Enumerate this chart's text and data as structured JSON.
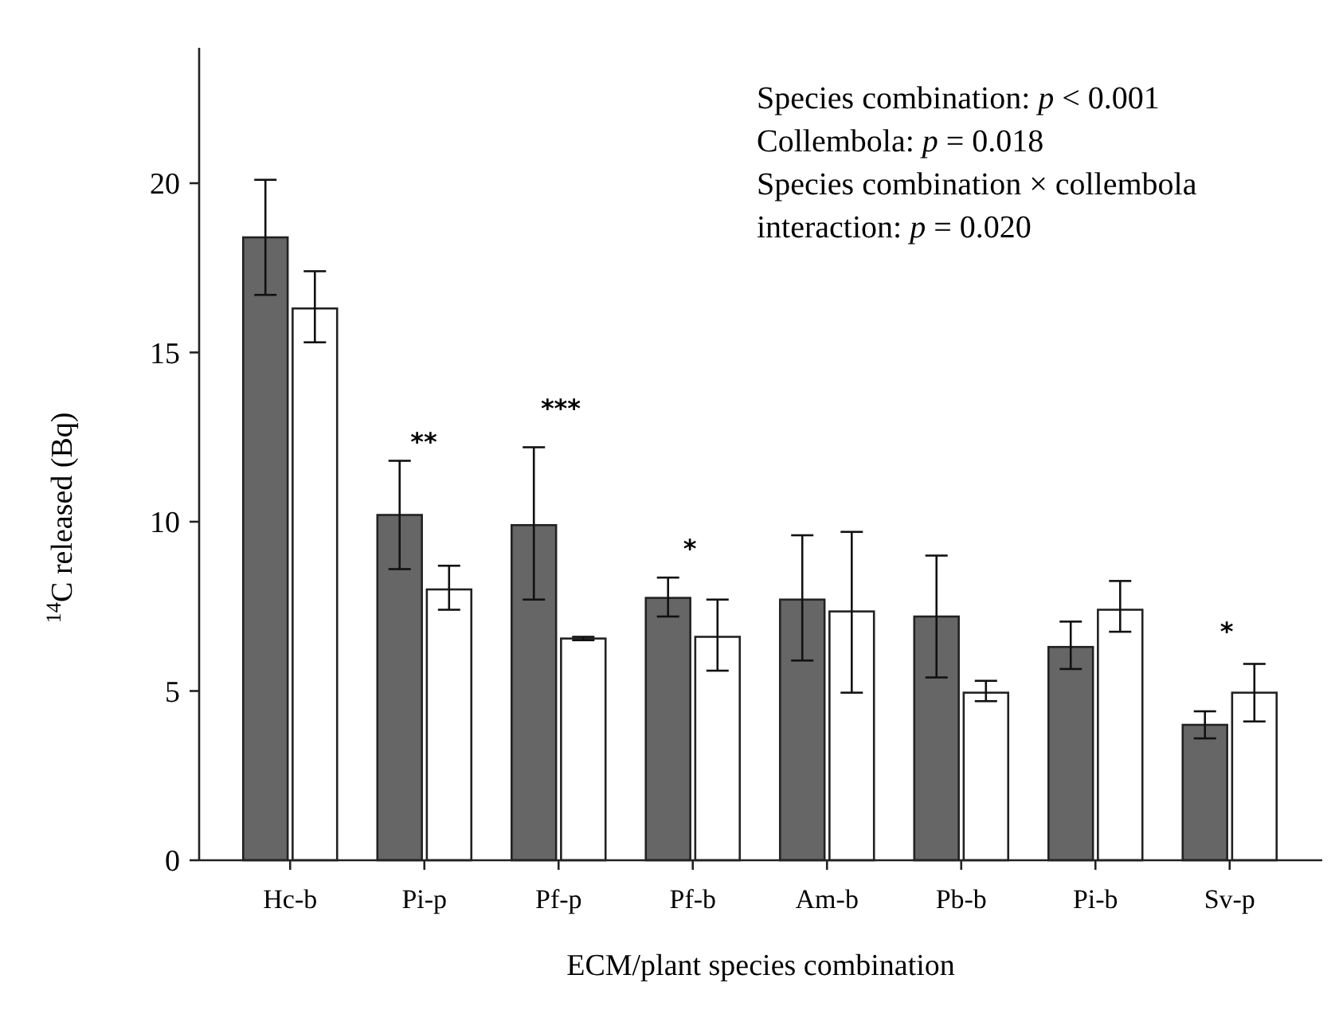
{
  "chart_data": {
    "type": "bar",
    "xlabel": "ECM/plant species combination",
    "ylabel": "$^{14}$C released (Bq)",
    "categories": [
      "Hc-b",
      "Pi-p",
      "Pf-p",
      "Pf-b",
      "Am-b",
      "Pb-b",
      "Pi-b",
      "Sv-p"
    ],
    "series": [
      {
        "color": "#666666",
        "values": [
          18.4,
          10.2,
          9.9,
          7.75,
          7.7,
          7.2,
          6.3,
          4.0
        ],
        "errors": [
          [
            16.7,
            20.1
          ],
          [
            8.6,
            11.8
          ],
          [
            7.7,
            12.2
          ],
          [
            7.2,
            8.35
          ],
          [
            5.9,
            9.6
          ],
          [
            5.4,
            9.0
          ],
          [
            5.65,
            7.05
          ],
          [
            3.6,
            4.4
          ]
        ]
      },
      {
        "color": "#ffffff",
        "values": [
          16.3,
          8.0,
          6.55,
          6.6,
          7.35,
          4.95,
          7.4,
          4.95
        ],
        "errors": [
          [
            15.3,
            17.4
          ],
          [
            7.4,
            8.7
          ],
          [
            6.5,
            6.6
          ],
          [
            5.6,
            7.7
          ],
          [
            4.95,
            9.7
          ],
          [
            4.7,
            5.3
          ],
          [
            6.75,
            8.25
          ],
          [
            4.1,
            5.8
          ]
        ]
      }
    ],
    "ylim": [
      0,
      24
    ],
    "yticks": [
      0,
      5,
      10,
      15,
      20
    ],
    "grid": false,
    "annotations": [
      "**",
      "***",
      "*",
      "*",
      "Species combination: p < 0.001",
      "Collembola: p = 0.018",
      "Species combination × collembola",
      "interaction: p = 0.020"
    ]
  }
}
